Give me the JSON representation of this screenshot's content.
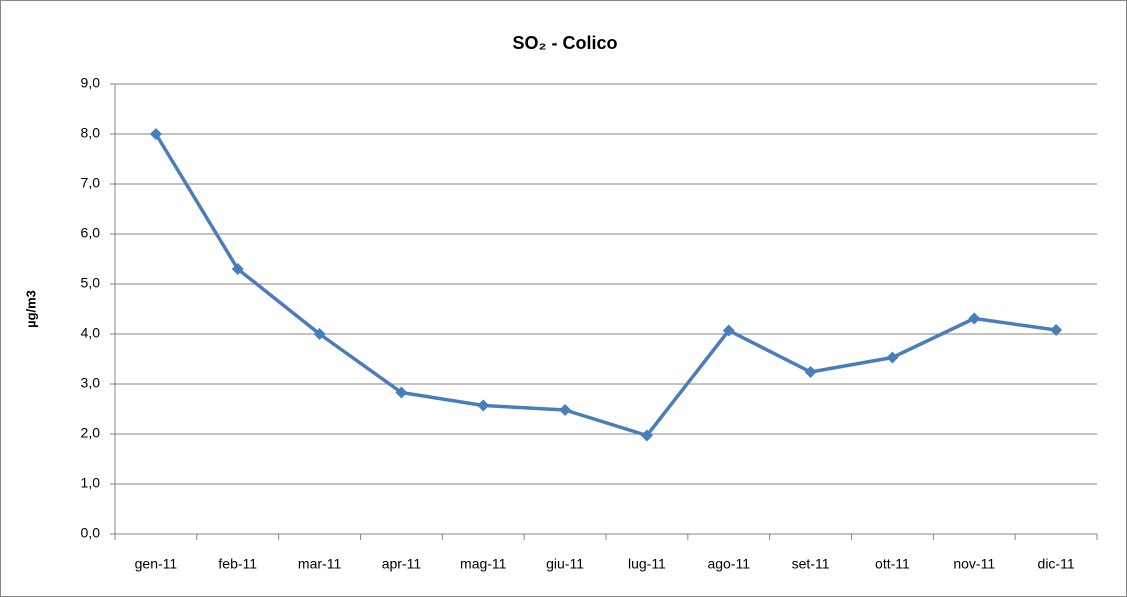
{
  "chart_data": {
    "type": "line",
    "title": "SO₂ - Colico",
    "y_label": "µg/m3",
    "categories": [
      "gen-11",
      "feb-11",
      "mar-11",
      "apr-11",
      "mag-11",
      "giu-11",
      "lug-11",
      "ago-11",
      "set-11",
      "ott-11",
      "nov-11",
      "dic-11"
    ],
    "series": [
      {
        "name": "SO₂",
        "color": "#4a7ebb",
        "values": [
          8.0,
          5.3,
          4.0,
          2.83,
          2.57,
          2.48,
          1.97,
          4.07,
          3.24,
          3.53,
          4.31,
          4.08
        ]
      }
    ],
    "ylim": [
      0,
      9
    ],
    "yticks": [
      {
        "value": 0,
        "label": "0,0"
      },
      {
        "value": 1,
        "label": "1,0"
      },
      {
        "value": 2,
        "label": "2,0"
      },
      {
        "value": 3,
        "label": "3,0"
      },
      {
        "value": 4,
        "label": "4,0"
      },
      {
        "value": 5,
        "label": "5,0"
      },
      {
        "value": 6,
        "label": "6,0"
      },
      {
        "value": 7,
        "label": "7,0"
      },
      {
        "value": 8,
        "label": "8,0"
      },
      {
        "value": 9,
        "label": "9,0"
      }
    ],
    "grid": true,
    "legend": false
  }
}
